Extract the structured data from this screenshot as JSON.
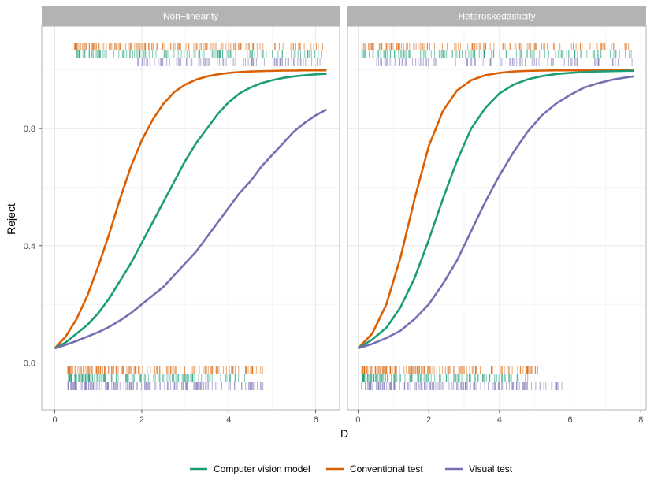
{
  "chart_data": {
    "type": "line",
    "xlabel": "D",
    "ylabel": "Reject",
    "y_ticks": [
      "0.0",
      "0.4",
      "0.8"
    ],
    "grid": true,
    "legend_position": "bottom",
    "series": [
      {
        "name": "Computer vision model",
        "color": "#1B9E77"
      },
      {
        "name": "Conventional test",
        "color": "#D95F02"
      },
      {
        "name": "Visual test",
        "color": "#7570B3"
      }
    ],
    "panels": [
      {
        "title": "Non−linearity",
        "xlim": [
          -0.3,
          6.55
        ],
        "ylim": [
          -0.16,
          1.15
        ],
        "x_ticks": [
          "0",
          "2",
          "4",
          "6"
        ],
        "curves": [
          {
            "series": "Conventional test",
            "x": [
              0,
              0.25,
              0.5,
              0.75,
              1,
              1.25,
              1.5,
              1.75,
              2,
              2.25,
              2.5,
              2.75,
              3,
              3.25,
              3.5,
              3.75,
              4,
              4.25,
              4.5,
              4.75,
              5,
              5.25,
              5.5,
              5.75,
              6,
              6.25
            ],
            "y": [
              0.05,
              0.09,
              0.15,
              0.23,
              0.33,
              0.44,
              0.56,
              0.67,
              0.76,
              0.83,
              0.885,
              0.925,
              0.95,
              0.967,
              0.978,
              0.985,
              0.99,
              0.993,
              0.995,
              0.996,
              0.997,
              0.998,
              0.998,
              0.999,
              0.999,
              0.999
            ]
          },
          {
            "series": "Computer vision model",
            "x": [
              0,
              0.25,
              0.5,
              0.75,
              1,
              1.25,
              1.5,
              1.75,
              2,
              2.25,
              2.5,
              2.75,
              3,
              3.25,
              3.5,
              3.75,
              4,
              4.25,
              4.5,
              4.75,
              5,
              5.25,
              5.5,
              5.75,
              6,
              6.25
            ],
            "y": [
              0.05,
              0.07,
              0.1,
              0.13,
              0.17,
              0.22,
              0.28,
              0.34,
              0.41,
              0.48,
              0.55,
              0.62,
              0.69,
              0.75,
              0.8,
              0.85,
              0.89,
              0.92,
              0.94,
              0.955,
              0.965,
              0.973,
              0.978,
              0.982,
              0.985,
              0.987
            ]
          },
          {
            "series": "Visual test",
            "x": [
              0,
              0.25,
              0.5,
              0.75,
              1,
              1.25,
              1.5,
              1.75,
              2,
              2.25,
              2.5,
              2.75,
              3,
              3.25,
              3.5,
              3.75,
              4,
              4.25,
              4.5,
              4.75,
              5,
              5.25,
              5.5,
              5.75,
              6,
              6.25
            ],
            "y": [
              0.05,
              0.062,
              0.075,
              0.09,
              0.105,
              0.123,
              0.145,
              0.17,
              0.2,
              0.23,
              0.26,
              0.3,
              0.34,
              0.38,
              0.43,
              0.48,
              0.53,
              0.58,
              0.62,
              0.67,
              0.71,
              0.75,
              0.79,
              0.82,
              0.845,
              0.865
            ]
          }
        ],
        "rug_top": [
          {
            "series": "Conventional test",
            "from": 0.4,
            "to": 6.2,
            "density": 1.0
          },
          {
            "series": "Computer vision model",
            "from": 0.5,
            "to": 6.2,
            "density": 0.85
          },
          {
            "series": "Visual test",
            "from": 1.9,
            "to": 6.2,
            "density": 0.55
          }
        ],
        "rug_bottom": [
          {
            "series": "Conventional test",
            "from": 0.3,
            "to": 4.9,
            "density": 1.0
          },
          {
            "series": "Computer vision model",
            "from": 0.3,
            "to": 4.4,
            "density": 0.9
          },
          {
            "series": "Visual test",
            "from": 0.3,
            "to": 4.8,
            "density": 1.0
          }
        ]
      },
      {
        "title": "Heteroskedasticity",
        "xlim": [
          -0.3,
          8.15
        ],
        "ylim": [
          -0.16,
          1.15
        ],
        "x_ticks": [
          "0",
          "2",
          "4",
          "6",
          "8"
        ],
        "curves": [
          {
            "series": "Conventional test",
            "x": [
              0,
              0.4,
              0.8,
              1.2,
              1.6,
              2,
              2.4,
              2.8,
              3.2,
              3.6,
              4,
              4.4,
              4.8,
              5.2,
              5.6,
              6,
              6.4,
              6.8,
              7.2,
              7.6,
              7.8
            ],
            "y": [
              0.05,
              0.1,
              0.2,
              0.36,
              0.56,
              0.74,
              0.86,
              0.93,
              0.965,
              0.982,
              0.99,
              0.995,
              0.997,
              0.998,
              0.999,
              0.999,
              0.999,
              0.999,
              0.999,
              0.999,
              0.999
            ]
          },
          {
            "series": "Computer vision model",
            "x": [
              0,
              0.4,
              0.8,
              1.2,
              1.6,
              2,
              2.4,
              2.8,
              3.2,
              3.6,
              4,
              4.4,
              4.8,
              5.2,
              5.6,
              6,
              6.4,
              6.8,
              7.2,
              7.6,
              7.8
            ],
            "y": [
              0.05,
              0.08,
              0.12,
              0.19,
              0.29,
              0.42,
              0.56,
              0.69,
              0.8,
              0.87,
              0.92,
              0.95,
              0.968,
              0.979,
              0.986,
              0.99,
              0.993,
              0.995,
              0.996,
              0.997,
              0.997
            ]
          },
          {
            "series": "Visual test",
            "x": [
              0,
              0.4,
              0.8,
              1.2,
              1.6,
              2,
              2.4,
              2.8,
              3.2,
              3.6,
              4,
              4.4,
              4.8,
              5.2,
              5.6,
              6,
              6.4,
              6.8,
              7.2,
              7.6,
              7.8
            ],
            "y": [
              0.05,
              0.065,
              0.085,
              0.11,
              0.15,
              0.2,
              0.27,
              0.35,
              0.45,
              0.55,
              0.64,
              0.72,
              0.79,
              0.845,
              0.885,
              0.915,
              0.94,
              0.955,
              0.967,
              0.975,
              0.978
            ]
          }
        ],
        "rug_top": [
          {
            "series": "Conventional test",
            "from": 0.1,
            "to": 7.8,
            "density": 0.9
          },
          {
            "series": "Computer vision model",
            "from": 0.1,
            "to": 7.8,
            "density": 0.85
          },
          {
            "series": "Visual test",
            "from": 0.5,
            "to": 7.8,
            "density": 0.6
          }
        ],
        "rug_bottom": [
          {
            "series": "Conventional test",
            "from": 0.1,
            "to": 5.1,
            "density": 1.0
          },
          {
            "series": "Computer vision model",
            "from": 0.1,
            "to": 4.8,
            "density": 0.9
          },
          {
            "series": "Visual test",
            "from": 0.1,
            "to": 5.8,
            "density": 1.0
          }
        ]
      }
    ]
  }
}
